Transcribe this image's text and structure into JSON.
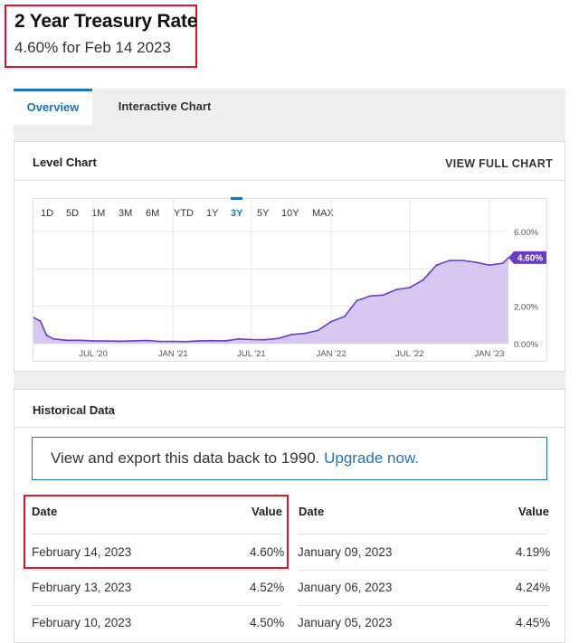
{
  "header": {
    "title": "2 Year Treasury Rate",
    "subtitle": "4.60% for Feb 14 2023"
  },
  "tabs": [
    {
      "label": "Overview",
      "active": true
    },
    {
      "label": "Interactive Chart",
      "active": false
    }
  ],
  "level_chart": {
    "title": "Level Chart",
    "view_full_label": "VIEW FULL CHART",
    "ranges": [
      "1D",
      "5D",
      "1M",
      "3M",
      "6M",
      "YTD",
      "1Y",
      "3Y",
      "5Y",
      "10Y",
      "MAX"
    ],
    "active_range": "3Y",
    "current_value_label": "4.60%"
  },
  "chart_data": {
    "type": "area",
    "title": "",
    "xlabel": "",
    "ylabel": "",
    "x_tick_labels": [
      "JUL '20",
      "JAN '21",
      "JUL '21",
      "JAN '22",
      "JUL '22",
      "JAN '23"
    ],
    "y_tick_labels": [
      "0.00%",
      "2.00%",
      "4.00%",
      "6.00%"
    ],
    "ylim": [
      0,
      6
    ],
    "x": [
      "2020-02-14",
      "2020-03-01",
      "2020-03-15",
      "2020-04-01",
      "2020-05-01",
      "2020-06-01",
      "2020-07-01",
      "2020-08-01",
      "2020-09-01",
      "2020-10-01",
      "2020-11-01",
      "2020-12-01",
      "2021-01-01",
      "2021-02-01",
      "2021-03-01",
      "2021-04-01",
      "2021-05-01",
      "2021-06-01",
      "2021-07-01",
      "2021-08-01",
      "2021-09-01",
      "2021-10-01",
      "2021-11-01",
      "2021-12-01",
      "2022-01-01",
      "2022-02-01",
      "2022-03-01",
      "2022-04-01",
      "2022-05-01",
      "2022-06-01",
      "2022-07-01",
      "2022-08-01",
      "2022-09-01",
      "2022-10-01",
      "2022-11-01",
      "2022-12-01",
      "2023-01-01",
      "2023-02-01",
      "2023-02-14"
    ],
    "series": [
      {
        "values": [
          1.4,
          1.2,
          0.45,
          0.25,
          0.18,
          0.18,
          0.15,
          0.14,
          0.13,
          0.15,
          0.17,
          0.12,
          0.12,
          0.11,
          0.15,
          0.16,
          0.15,
          0.25,
          0.22,
          0.21,
          0.28,
          0.48,
          0.55,
          0.7,
          1.18,
          1.45,
          2.3,
          2.55,
          2.6,
          2.9,
          3.0,
          3.4,
          4.2,
          4.45,
          4.45,
          4.35,
          4.2,
          4.3,
          4.6
        ],
        "color": "#6a3cc7",
        "fill": "#d7c8f2"
      }
    ]
  },
  "historical": {
    "title": "Historical Data",
    "promo_text": "View and export this data back to 1990.",
    "promo_link": "Upgrade now.",
    "col_date": "Date",
    "col_value": "Value",
    "left_rows": [
      {
        "date": "February 14, 2023",
        "value": "4.60%"
      },
      {
        "date": "February 13, 2023",
        "value": "4.52%"
      },
      {
        "date": "February 10, 2023",
        "value": "4.50%"
      }
    ],
    "right_rows": [
      {
        "date": "January 09, 2023",
        "value": "4.19%"
      },
      {
        "date": "January 06, 2023",
        "value": "4.24%"
      },
      {
        "date": "January 05, 2023",
        "value": "4.45%"
      }
    ]
  }
}
